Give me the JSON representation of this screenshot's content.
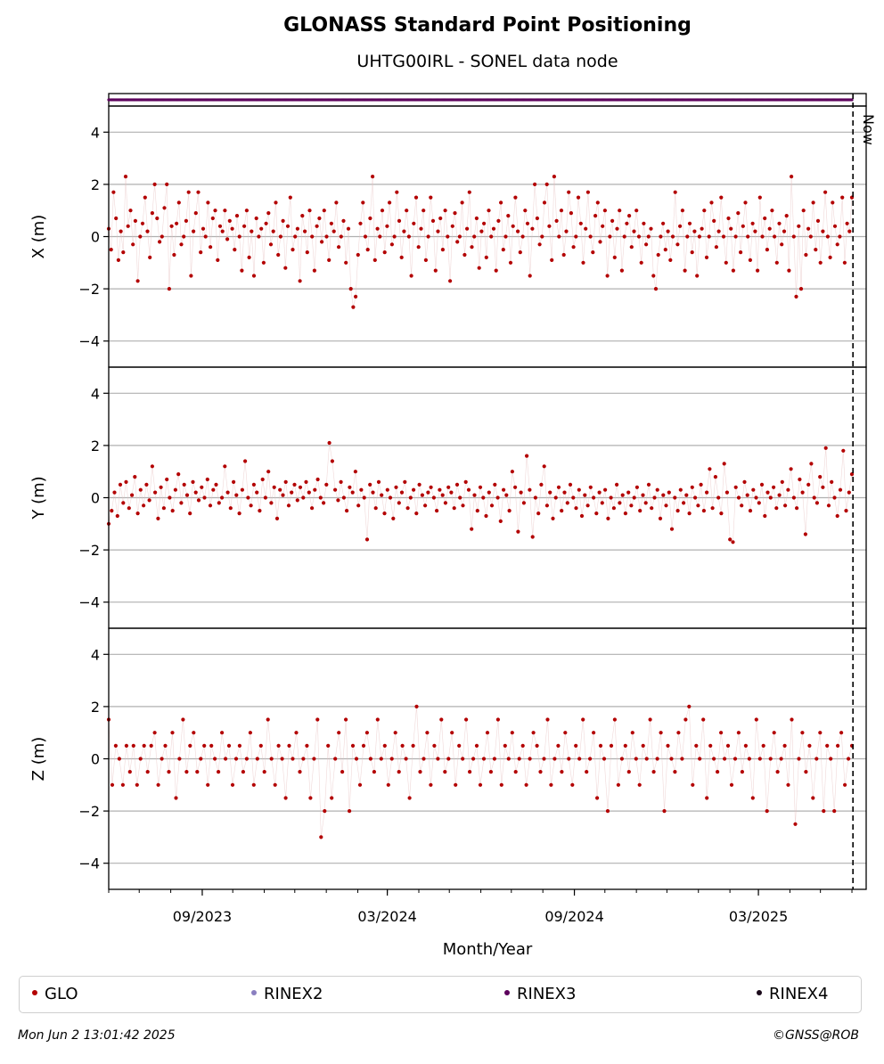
{
  "title": "GLONASS Standard Point Positioning",
  "subtitle": "UHTG00IRL - SONEL data node",
  "now_label": "Now",
  "xlabel": "Month/Year",
  "footer": {
    "timestamp": "Mon Jun  2 13:01:42 2025",
    "credit": "©GNSS@ROB"
  },
  "legend": [
    {
      "label": "GLO",
      "color": "#b30000"
    },
    {
      "label": "RINEX2",
      "color": "#8a7fc0"
    },
    {
      "label": "RINEX3",
      "color": "#5c005c"
    },
    {
      "label": "RINEX4",
      "color": "#1a0a1a"
    }
  ],
  "chart_data": {
    "type": "scatter",
    "x_axis": {
      "type": "date",
      "range": [
        "2023-06-01",
        "2025-06-15"
      ],
      "tick_labels": [
        "09/2023",
        "03/2024",
        "09/2024",
        "03/2025"
      ],
      "tick_dates": [
        "2023-09-01",
        "2024-03-01",
        "2024-09-01",
        "2025-03-01"
      ]
    },
    "now_date": "2025-06-02",
    "rinex_bar": {
      "series": "RINEX3",
      "start": "2023-06-01",
      "end": "2025-06-01"
    },
    "grid": true,
    "legend_position": "bottom",
    "series_color": "#b30000",
    "panels": [
      {
        "ylabel": "X (m)",
        "ylim": [
          -5,
          5
        ],
        "yticks": [
          -4,
          -2,
          0,
          2,
          4
        ],
        "values": [
          0.3,
          -0.5,
          1.7,
          0.7,
          -0.9,
          0.2,
          -0.6,
          2.3,
          0.4,
          1.0,
          -0.3,
          0.6,
          -1.7,
          0.0,
          0.5,
          1.5,
          0.2,
          -0.8,
          0.9,
          2.0,
          0.7,
          -0.2,
          0.0,
          1.1,
          2.0,
          -2.0,
          0.4,
          -0.7,
          0.5,
          1.3,
          -0.3,
          0.0,
          0.6,
          1.7,
          -1.5,
          0.2,
          0.9,
          1.7,
          -0.6,
          0.3,
          0.0,
          1.3,
          -0.4,
          0.7,
          1.0,
          -0.9,
          0.4,
          0.2,
          1.0,
          -0.1,
          0.6,
          0.3,
          -0.5,
          0.8,
          0.0,
          -1.3,
          0.4,
          1.0,
          -0.8,
          0.2,
          -1.5,
          0.7,
          0.0,
          0.3,
          -1.0,
          0.5,
          0.9,
          -0.3,
          0.2,
          1.3,
          -0.7,
          0.0,
          0.6,
          -1.2,
          0.4,
          1.5,
          -0.5,
          0.0,
          0.3,
          -1.7,
          0.8,
          0.2,
          -0.6,
          1.0,
          0.0,
          -1.3,
          0.4,
          0.7,
          -0.2,
          1.0,
          0.0,
          -0.9,
          0.5,
          0.2,
          1.3,
          -0.4,
          0.0,
          0.6,
          -1.0,
          0.3,
          -2.0,
          -2.7,
          -2.3,
          -0.7,
          0.5,
          1.3,
          0.0,
          -0.5,
          0.7,
          2.3,
          -0.9,
          0.3,
          0.0,
          1.0,
          -0.6,
          0.4,
          1.3,
          -0.3,
          0.0,
          1.7,
          0.6,
          -0.8,
          0.2,
          1.0,
          0.0,
          -1.5,
          0.5,
          1.5,
          -0.4,
          0.3,
          1.0,
          -0.9,
          0.0,
          1.5,
          0.6,
          -1.3,
          0.2,
          0.7,
          -0.5,
          1.0,
          0.0,
          -1.7,
          0.4,
          0.9,
          -0.2,
          0.0,
          1.3,
          -0.7,
          0.3,
          1.7,
          -0.4,
          0.0,
          0.7,
          -1.2,
          0.2,
          0.5,
          -0.8,
          1.0,
          0.0,
          0.3,
          -1.3,
          0.6,
          1.3,
          -0.5,
          0.0,
          0.8,
          -1.0,
          0.4,
          1.5,
          0.2,
          -0.6,
          0.0,
          1.0,
          0.5,
          -1.5,
          0.3,
          2.0,
          0.7,
          -0.3,
          0.0,
          1.3,
          2.0,
          0.4,
          -0.9,
          2.3,
          0.6,
          0.0,
          1.0,
          -0.7,
          0.2,
          1.7,
          0.9,
          -0.4,
          0.0,
          1.5,
          0.5,
          -1.0,
          0.3,
          1.7,
          0.0,
          -0.6,
          0.8,
          1.3,
          -0.2,
          0.4,
          1.0,
          -1.5,
          0.0,
          0.6,
          -0.8,
          0.3,
          1.0,
          -1.3,
          0.0,
          0.5,
          0.8,
          -0.4,
          0.2,
          1.0,
          0.0,
          -1.0,
          0.5,
          -0.3,
          0.0,
          0.3,
          -1.5,
          -2.0,
          -0.7,
          0.0,
          0.5,
          -0.5,
          0.2,
          -0.9,
          0.0,
          1.7,
          -0.3,
          0.4,
          1.0,
          -1.3,
          0.0,
          0.5,
          -0.6,
          0.2,
          -1.5,
          0.0,
          0.3,
          1.0,
          -0.8,
          0.0,
          1.3,
          0.6,
          -0.4,
          0.2,
          1.5,
          0.0,
          -1.0,
          0.7,
          0.3,
          -1.3,
          0.0,
          0.9,
          -0.6,
          0.4,
          1.3,
          0.0,
          -0.9,
          0.5,
          0.2,
          -1.3,
          1.5,
          0.0,
          0.7,
          -0.5,
          0.3,
          1.0,
          0.0,
          -1.0,
          0.5,
          -0.3,
          0.2,
          0.8,
          -1.3,
          2.3,
          0.0,
          -2.3,
          0.4,
          -2.0,
          1.0,
          -0.7,
          0.3,
          0.0,
          1.3,
          -0.5,
          0.6,
          -1.0,
          0.2,
          1.7,
          0.0,
          -0.8,
          1.3,
          0.4,
          -0.3,
          0.0,
          1.5,
          -1.0,
          0.5,
          0.2,
          1.5
        ]
      },
      {
        "ylabel": "Y (m)",
        "ylim": [
          -5,
          5
        ],
        "yticks": [
          -4,
          -2,
          0,
          2,
          4
        ],
        "values": [
          -1.0,
          -0.5,
          0.2,
          -0.7,
          0.5,
          -0.2,
          0.6,
          -0.4,
          0.1,
          0.8,
          -0.6,
          0.3,
          -0.3,
          0.5,
          -0.1,
          1.2,
          0.2,
          -0.8,
          0.4,
          -0.4,
          0.7,
          0.0,
          -0.5,
          0.3,
          0.9,
          -0.2,
          0.5,
          0.1,
          -0.6,
          0.6,
          0.2,
          -0.1,
          0.4,
          0.0,
          0.7,
          -0.3,
          0.3,
          0.5,
          -0.2,
          0.0,
          1.2,
          0.2,
          -0.4,
          0.6,
          0.1,
          -0.6,
          0.3,
          1.4,
          0.0,
          -0.3,
          0.5,
          0.2,
          -0.5,
          0.7,
          0.0,
          1.0,
          -0.2,
          0.4,
          -0.8,
          0.3,
          0.1,
          0.6,
          -0.3,
          0.2,
          0.5,
          -0.1,
          0.4,
          0.0,
          0.6,
          0.2,
          -0.4,
          0.3,
          0.7,
          0.0,
          -0.2,
          0.5,
          2.1,
          1.4,
          0.3,
          -0.1,
          0.6,
          0.0,
          -0.5,
          0.4,
          0.2,
          1.0,
          -0.3,
          0.3,
          0.0,
          -1.6,
          0.5,
          0.2,
          -0.4,
          0.6,
          0.1,
          -0.6,
          0.3,
          0.0,
          -0.8,
          0.4,
          -0.2,
          0.2,
          0.6,
          -0.4,
          0.0,
          0.3,
          -0.6,
          0.5,
          0.1,
          -0.3,
          0.2,
          0.4,
          0.0,
          -0.5,
          0.3,
          0.1,
          -0.2,
          0.4,
          0.2,
          -0.4,
          0.5,
          0.0,
          -0.3,
          0.6,
          0.3,
          -1.2,
          0.1,
          -0.5,
          0.4,
          0.0,
          -0.7,
          0.2,
          -0.3,
          0.5,
          0.0,
          -0.9,
          0.3,
          0.1,
          -0.5,
          1.0,
          0.4,
          -1.3,
          0.2,
          -0.2,
          1.6,
          0.3,
          -1.5,
          0.0,
          -0.6,
          0.5,
          1.2,
          -0.3,
          0.2,
          -0.8,
          0.0,
          0.4,
          -0.5,
          0.2,
          -0.2,
          0.5,
          0.0,
          -0.4,
          0.3,
          -0.7,
          0.1,
          -0.3,
          0.4,
          0.0,
          -0.6,
          0.2,
          -0.2,
          0.3,
          -0.8,
          0.0,
          -0.4,
          0.5,
          -0.2,
          0.1,
          -0.6,
          0.2,
          -0.3,
          0.0,
          0.4,
          -0.5,
          0.1,
          -0.2,
          0.5,
          -0.4,
          0.0,
          0.3,
          -0.8,
          0.1,
          -0.3,
          0.2,
          -1.2,
          0.0,
          -0.5,
          0.3,
          -0.2,
          0.1,
          -0.6,
          0.4,
          0.0,
          -0.3,
          0.5,
          -0.5,
          0.2,
          1.1,
          -0.4,
          0.8,
          0.0,
          -0.6,
          1.3,
          0.2,
          -1.6,
          -1.7,
          0.4,
          0.0,
          -0.3,
          0.6,
          0.1,
          -0.5,
          0.3,
          0.0,
          -0.2,
          0.5,
          -0.7,
          0.2,
          0.0,
          0.4,
          -0.4,
          0.1,
          0.6,
          -0.3,
          0.3,
          1.1,
          0.0,
          -0.4,
          0.7,
          0.2,
          -1.4,
          0.5,
          1.3,
          0.0,
          -0.2,
          0.8,
          0.4,
          1.9,
          -0.3,
          0.6,
          0.0,
          -0.7,
          0.3,
          1.8,
          -0.5,
          0.2,
          0.9
        ]
      },
      {
        "ylabel": "Z (m)",
        "ylim": [
          -5,
          5
        ],
        "yticks": [
          -4,
          -2,
          0,
          2,
          4
        ],
        "values": [
          1.5,
          -1.0,
          0.5,
          0.0,
          -1.0,
          0.5,
          -0.5,
          0.5,
          -1.0,
          0.0,
          0.5,
          -0.5,
          0.5,
          1.0,
          -1.0,
          0.0,
          0.5,
          -0.5,
          1.0,
          -1.5,
          0.0,
          1.5,
          -0.5,
          0.5,
          1.0,
          -0.5,
          0.0,
          0.5,
          -1.0,
          0.5,
          0.0,
          -0.5,
          1.0,
          0.0,
          0.5,
          -1.0,
          0.0,
          0.5,
          -0.5,
          0.0,
          1.0,
          -1.0,
          0.0,
          0.5,
          -0.5,
          1.5,
          0.0,
          -1.0,
          0.5,
          0.0,
          -1.5,
          0.5,
          0.0,
          1.0,
          -0.5,
          0.0,
          0.5,
          -1.5,
          0.0,
          1.5,
          -3.0,
          -2.0,
          0.5,
          -1.5,
          0.0,
          1.0,
          -0.5,
          1.5,
          -2.0,
          0.5,
          0.0,
          -1.0,
          0.5,
          1.0,
          0.0,
          -0.5,
          1.5,
          0.0,
          0.5,
          -1.0,
          0.0,
          1.0,
          -0.5,
          0.5,
          0.0,
          -1.5,
          0.5,
          2.0,
          -0.5,
          0.0,
          1.0,
          -1.0,
          0.5,
          0.0,
          1.5,
          -0.5,
          0.0,
          1.0,
          -1.0,
          0.5,
          0.0,
          1.5,
          -0.5,
          0.0,
          0.5,
          -1.0,
          0.0,
          1.0,
          -0.5,
          0.0,
          1.5,
          -1.0,
          0.5,
          0.0,
          1.0,
          -0.5,
          0.0,
          0.5,
          -1.0,
          0.0,
          1.0,
          0.5,
          -0.5,
          0.0,
          1.5,
          -1.0,
          0.0,
          0.5,
          -0.5,
          1.0,
          0.0,
          -1.0,
          0.5,
          0.0,
          1.5,
          -0.5,
          0.0,
          1.0,
          -1.5,
          0.5,
          0.0,
          -2.0,
          0.5,
          1.5,
          -1.0,
          0.0,
          0.5,
          -0.5,
          1.0,
          0.0,
          -1.0,
          0.5,
          0.0,
          1.5,
          -0.5,
          0.0,
          1.0,
          -2.0,
          0.5,
          0.0,
          -0.5,
          1.0,
          0.0,
          1.5,
          2.0,
          -1.0,
          0.5,
          0.0,
          1.5,
          -1.5,
          0.5,
          0.0,
          -0.5,
          1.0,
          0.0,
          0.5,
          -1.0,
          0.0,
          1.0,
          -0.5,
          0.5,
          0.0,
          -1.5,
          1.5,
          0.0,
          0.5,
          -2.0,
          0.0,
          1.0,
          -0.5,
          0.0,
          0.5,
          -1.0,
          1.5,
          -2.5,
          0.0,
          1.0,
          -0.5,
          0.5,
          -1.5,
          0.0,
          1.0,
          -2.0,
          0.5,
          0.0,
          -2.0,
          0.5,
          1.0,
          -1.0,
          0.0,
          0.5
        ]
      }
    ]
  }
}
